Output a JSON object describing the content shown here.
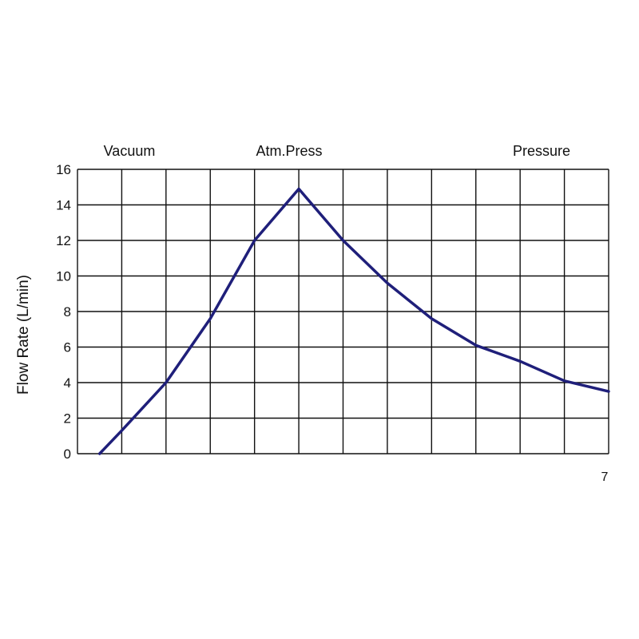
{
  "chart_data": {
    "type": "line",
    "title": "",
    "xlabel": "",
    "ylabel": "Flow Rate  (L/min)",
    "region_labels": [
      "Vacuum",
      "Atm.Press",
      "Pressure"
    ],
    "x_tick_labels_visible": [
      "7"
    ],
    "ylim": [
      0,
      16
    ],
    "y_ticks": [
      0,
      2,
      4,
      6,
      8,
      10,
      12,
      14,
      16
    ],
    "x_grid_divisions": 12,
    "grid": true,
    "line_color": "#1f1f7a",
    "series": [
      {
        "points": [
          [
            0.5,
            0
          ],
          [
            1,
            1.3
          ],
          [
            2,
            4
          ],
          [
            3,
            7.6
          ],
          [
            4,
            12
          ],
          [
            5,
            14.9
          ],
          [
            6,
            12
          ],
          [
            7,
            9.6
          ],
          [
            8,
            7.6
          ],
          [
            9,
            6.1
          ],
          [
            10,
            5.2
          ],
          [
            11,
            4.1
          ],
          [
            12,
            3.5
          ]
        ]
      }
    ]
  }
}
